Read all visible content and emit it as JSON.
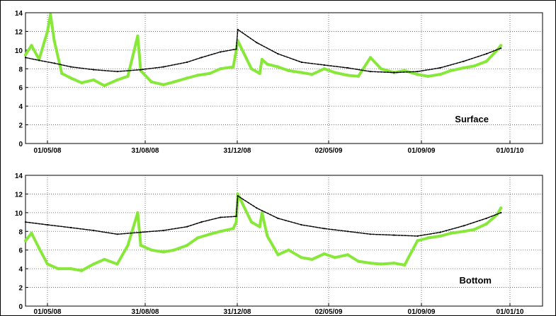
{
  "chart_data": [
    {
      "type": "line",
      "label": "Surface",
      "xticks": [
        "01/05/08",
        "31/08/08",
        "31/12/08",
        "02/05/09",
        "01/09/09",
        "01/01/10"
      ],
      "yticks": [
        "0",
        "2",
        "4",
        "6",
        "8",
        "10",
        "12",
        "14"
      ],
      "ylim": [
        0,
        14
      ],
      "grid": true,
      "series": [
        {
          "color": "#000000",
          "x": [
            "2008-04-01",
            "2008-04-20",
            "2008-05-10",
            "2008-06-01",
            "2008-07-01",
            "2008-08-01",
            "2008-09-01",
            "2008-10-01",
            "2008-11-01",
            "2008-11-20",
            "2008-12-15",
            "2009-01-05",
            "2009-01-07",
            "2009-02-01",
            "2009-03-01",
            "2009-04-01",
            "2009-05-01",
            "2009-06-01",
            "2009-07-01",
            "2009-08-01",
            "2009-09-01",
            "2009-10-01",
            "2009-11-01",
            "2009-12-01",
            "2009-12-20"
          ],
          "y": [
            9.2,
            8.9,
            8.6,
            8.2,
            7.9,
            7.7,
            7.9,
            8.2,
            8.7,
            9.2,
            9.8,
            10.1,
            12.2,
            10.8,
            9.6,
            8.7,
            8.4,
            8.1,
            7.7,
            7.6,
            7.7,
            8.1,
            8.8,
            9.6,
            10.2
          ]
        },
        {
          "color": "#88e83a",
          "x": [
            "2008-04-01",
            "2008-04-10",
            "2008-04-20",
            "2008-05-01",
            "2008-05-05",
            "2008-05-10",
            "2008-05-20",
            "2008-06-01",
            "2008-06-15",
            "2008-07-01",
            "2008-07-15",
            "2008-08-01",
            "2008-08-15",
            "2008-08-28",
            "2008-09-01",
            "2008-09-15",
            "2008-10-01",
            "2008-10-15",
            "2008-11-01",
            "2008-11-15",
            "2008-12-01",
            "2008-12-15",
            "2009-01-01",
            "2009-01-05",
            "2009-01-07",
            "2009-01-25",
            "2009-02-05",
            "2009-02-08",
            "2009-02-15",
            "2009-03-01",
            "2009-03-15",
            "2009-04-01",
            "2009-04-15",
            "2009-05-01",
            "2009-05-15",
            "2009-06-01",
            "2009-06-15",
            "2009-07-01",
            "2009-07-15",
            "2009-08-01",
            "2009-08-15",
            "2009-09-01",
            "2009-09-15",
            "2009-10-01",
            "2009-10-15",
            "2009-11-01",
            "2009-11-15",
            "2009-12-01",
            "2009-12-15",
            "2009-12-20"
          ],
          "y": [
            9.5,
            10.5,
            9.0,
            12.0,
            13.8,
            11.0,
            7.5,
            7.0,
            6.5,
            6.8,
            6.2,
            6.8,
            7.2,
            11.5,
            7.8,
            6.6,
            6.3,
            6.6,
            7.0,
            7.3,
            7.5,
            8.0,
            8.2,
            10.0,
            11.0,
            8.0,
            7.5,
            9.0,
            8.5,
            8.2,
            7.8,
            7.6,
            7.4,
            8.0,
            7.6,
            7.3,
            7.2,
            9.2,
            8.0,
            7.6,
            7.8,
            7.4,
            7.2,
            7.4,
            7.8,
            8.1,
            8.3,
            8.8,
            10.0,
            10.5
          ]
        }
      ]
    },
    {
      "type": "line",
      "label": "Bottom",
      "xticks": [
        "01/05/08",
        "31/08/08",
        "31/12/08",
        "02/05/09",
        "01/09/09",
        "01/01/10"
      ],
      "yticks": [
        "0",
        "2",
        "4",
        "6",
        "8",
        "10",
        "12",
        "14"
      ],
      "ylim": [
        0,
        14
      ],
      "grid": true,
      "series": [
        {
          "color": "#000000",
          "x": [
            "2008-04-01",
            "2008-05-01",
            "2008-06-01",
            "2008-07-01",
            "2008-08-01",
            "2008-09-01",
            "2008-10-01",
            "2008-11-01",
            "2008-11-20",
            "2008-12-15",
            "2009-01-05",
            "2009-01-07",
            "2009-02-01",
            "2009-03-01",
            "2009-04-01",
            "2009-05-01",
            "2009-06-01",
            "2009-07-01",
            "2009-08-01",
            "2009-09-01",
            "2009-10-01",
            "2009-11-01",
            "2009-12-01",
            "2009-12-20"
          ],
          "y": [
            9.0,
            8.7,
            8.4,
            8.1,
            7.7,
            7.9,
            8.1,
            8.5,
            9.0,
            9.5,
            9.6,
            11.8,
            10.5,
            9.4,
            8.7,
            8.3,
            8.0,
            7.7,
            7.6,
            7.5,
            7.9,
            8.6,
            9.4,
            10.0
          ]
        },
        {
          "color": "#88e83a",
          "x": [
            "2008-04-01",
            "2008-04-10",
            "2008-04-20",
            "2008-05-01",
            "2008-05-15",
            "2008-06-01",
            "2008-06-15",
            "2008-07-01",
            "2008-07-15",
            "2008-08-01",
            "2008-08-15",
            "2008-08-28",
            "2008-09-01",
            "2008-09-15",
            "2008-10-01",
            "2008-10-15",
            "2008-11-01",
            "2008-11-15",
            "2008-12-01",
            "2008-12-15",
            "2009-01-01",
            "2009-01-05",
            "2009-01-07",
            "2009-01-25",
            "2009-02-05",
            "2009-02-08",
            "2009-02-15",
            "2009-03-01",
            "2009-03-15",
            "2009-04-01",
            "2009-04-15",
            "2009-05-01",
            "2009-05-15",
            "2009-06-01",
            "2009-06-15",
            "2009-07-01",
            "2009-07-15",
            "2009-08-01",
            "2009-08-15",
            "2009-09-01",
            "2009-09-15",
            "2009-10-01",
            "2009-10-15",
            "2009-11-01",
            "2009-11-15",
            "2009-12-01",
            "2009-12-15",
            "2009-12-20"
          ],
          "y": [
            7.0,
            7.8,
            6.2,
            4.5,
            4.0,
            4.0,
            3.8,
            4.5,
            5.0,
            4.5,
            6.5,
            10.0,
            6.5,
            6.0,
            5.8,
            6.0,
            6.5,
            7.3,
            7.7,
            8.0,
            8.3,
            9.0,
            12.0,
            9.0,
            8.5,
            10.0,
            7.5,
            5.5,
            6.0,
            5.2,
            5.0,
            5.6,
            5.2,
            5.5,
            4.8,
            4.6,
            4.5,
            4.6,
            4.4,
            7.0,
            7.3,
            7.5,
            7.8,
            8.0,
            8.2,
            8.8,
            9.8,
            10.5
          ]
        }
      ]
    }
  ]
}
